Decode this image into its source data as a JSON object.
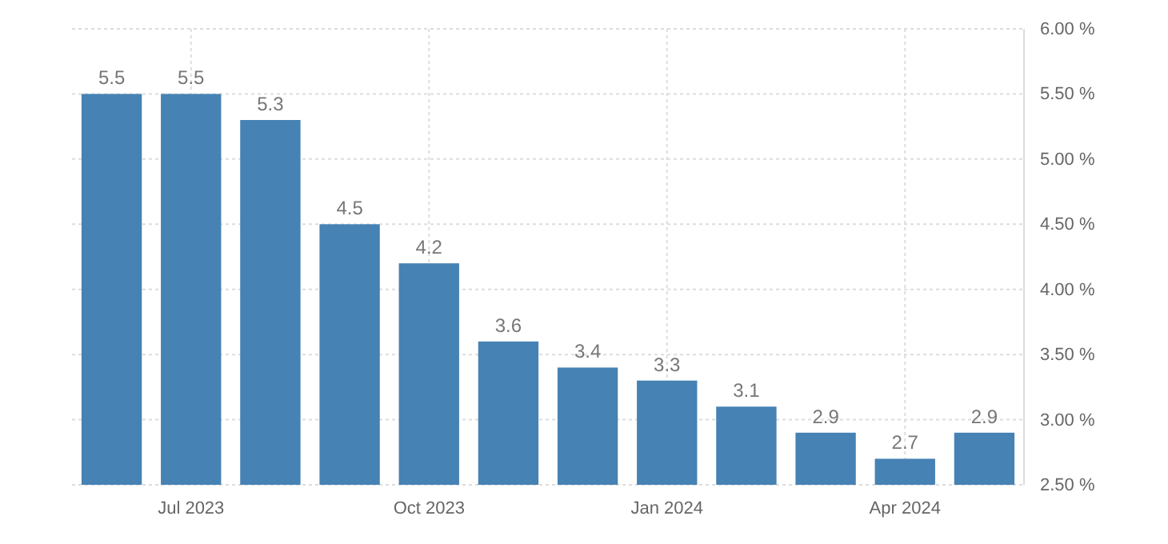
{
  "chart_data": {
    "type": "bar",
    "categories": [
      null,
      "Jul 2023",
      null,
      null,
      "Oct 2023",
      null,
      null,
      "Jan 2024",
      null,
      null,
      "Apr 2024",
      null
    ],
    "values": [
      5.5,
      5.5,
      5.3,
      4.5,
      4.2,
      3.6,
      3.4,
      3.3,
      3.1,
      2.9,
      2.7,
      2.9
    ],
    "color": "#4682b4",
    "ylim": [
      2.5,
      6.0
    ],
    "yticks": [
      {
        "value": 2.5,
        "label": "2.50 %"
      },
      {
        "value": 3.0,
        "label": "3.00 %"
      },
      {
        "value": 3.5,
        "label": "3.50 %"
      },
      {
        "value": 4.0,
        "label": "4.00 %"
      },
      {
        "value": 4.5,
        "label": "4.50 %"
      },
      {
        "value": 5.0,
        "label": "5.00 %"
      },
      {
        "value": 5.5,
        "label": "5.50 %"
      },
      {
        "value": 6.0,
        "label": "6.00 %"
      }
    ],
    "grid": true,
    "data_labels": true
  }
}
